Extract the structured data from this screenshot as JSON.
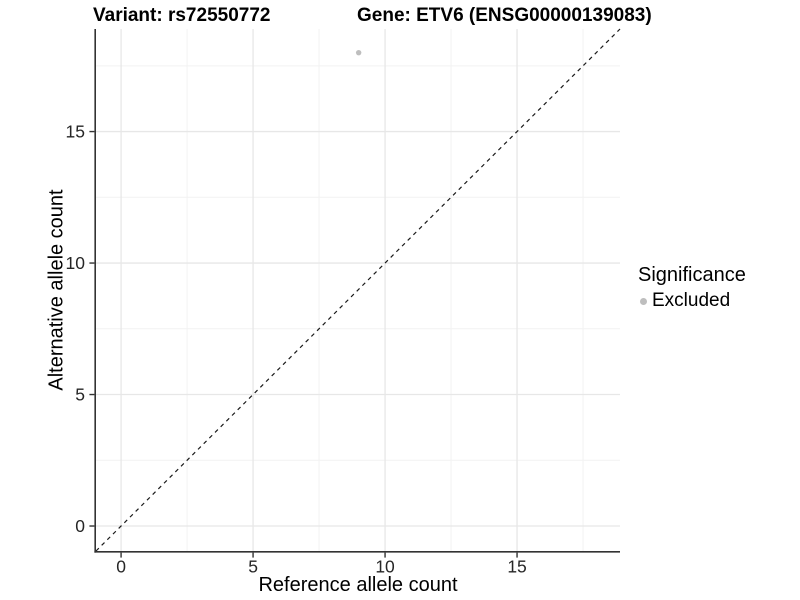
{
  "chart_data": {
    "type": "scatter",
    "title_left": "Variant: rs72550772",
    "title_right": "Gene: ETV6 (ENSG00000139083)",
    "xlabel": "Reference allele count",
    "ylabel": "Alternative allele count",
    "xlim": [
      -0.95,
      18.9
    ],
    "ylim": [
      -0.95,
      18.9
    ],
    "x_major_ticks": [
      0,
      5,
      10,
      15
    ],
    "y_major_ticks": [
      0,
      5,
      10,
      15
    ],
    "x_minor_ticks": [
      2.5,
      7.5,
      12.5,
      17.5
    ],
    "y_minor_ticks": [
      2.5,
      7.5,
      12.5,
      17.5
    ],
    "grid": true,
    "identity_line": {
      "style": "dashed",
      "from": -0.95,
      "to": 18.9,
      "color": "#1a1a1a"
    },
    "series": [
      {
        "name": "Excluded",
        "color": "#bebebe",
        "points": [
          [
            9,
            18
          ]
        ]
      }
    ],
    "legend": {
      "title": "Significance",
      "position": "right",
      "entries": [
        {
          "label": "Excluded",
          "color": "#bebebe",
          "marker": "circle"
        }
      ]
    },
    "colors": {
      "axis_line": "#333333",
      "tick_mark": "#333333",
      "tick_label": "#262626",
      "grid_major": "#e7e7e7",
      "grid_minor": "#f2f2f2",
      "point": "#bebebe",
      "background": "#ffffff"
    }
  }
}
